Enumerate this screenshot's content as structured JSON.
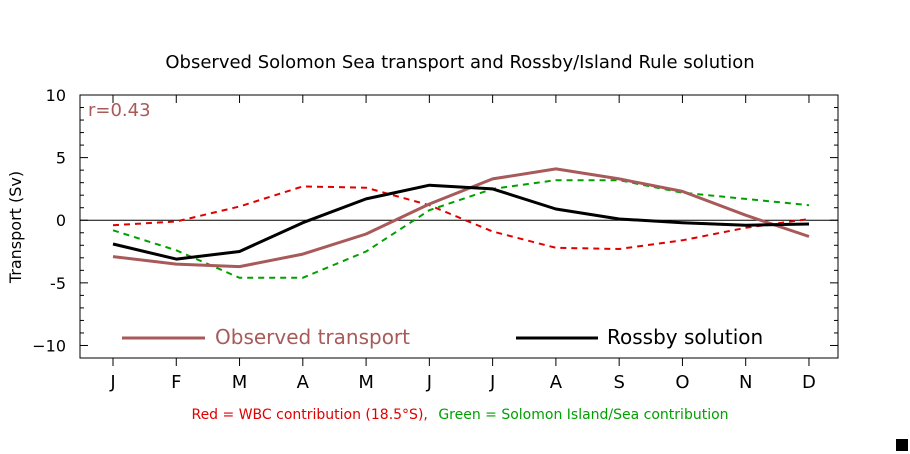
{
  "chart_data": {
    "type": "line",
    "title": "Observed Solomon Sea transport and Rossby/Island Rule solution",
    "xlabel": "",
    "ylabel": "Transport (Sv)",
    "categories": [
      "J",
      "F",
      "M",
      "A",
      "M",
      "J",
      "J",
      "A",
      "S",
      "O",
      "N",
      "D"
    ],
    "ylim": [
      -11,
      10
    ],
    "yticks": [
      10,
      5,
      0,
      -5,
      -10
    ],
    "ytick_labels": [
      "10",
      "5",
      "0",
      "-5",
      "−10"
    ],
    "correlation_label": "r=0.43",
    "series": [
      {
        "name": "Observed transport",
        "style": "solid",
        "color": "#a85a5a",
        "values": [
          -2.9,
          -3.5,
          -3.7,
          -2.7,
          -1.1,
          1.3,
          3.3,
          4.1,
          3.3,
          2.3,
          0.4,
          -1.3
        ]
      },
      {
        "name": "Rossby solution",
        "style": "solid",
        "color": "#000000",
        "values": [
          -1.9,
          -3.1,
          -2.5,
          -0.2,
          1.7,
          2.8,
          2.5,
          0.9,
          0.1,
          -0.2,
          -0.4,
          -0.3
        ]
      },
      {
        "name": "Red = WBC contribution (18.5°S)",
        "style": "dashed",
        "color": "#e00000",
        "values": [
          -0.4,
          -0.1,
          1.1,
          2.7,
          2.6,
          1.2,
          -0.9,
          -2.2,
          -2.3,
          -1.6,
          -0.6,
          0.1
        ]
      },
      {
        "name": "Green = Solomon Island/Sea contribution",
        "style": "dashed",
        "color": "#00a000",
        "values": [
          -0.8,
          -2.4,
          -4.6,
          -4.6,
          -2.5,
          0.8,
          2.5,
          3.2,
          3.2,
          2.2,
          1.7,
          1.2
        ]
      }
    ],
    "legend": {
      "placement": "bottom-inside",
      "entries": [
        "Observed transport",
        "Rossby solution"
      ]
    },
    "caption": {
      "red_part": "Red = WBC contribution (18.5°S),",
      "green_part": "Green = Solomon Island/Sea contribution"
    },
    "colors": {
      "observed": "#a85a5a",
      "rossby": "#000000",
      "wbc": "#e00000",
      "solomon": "#00a000",
      "axis": "#000000"
    },
    "grid": false
  }
}
